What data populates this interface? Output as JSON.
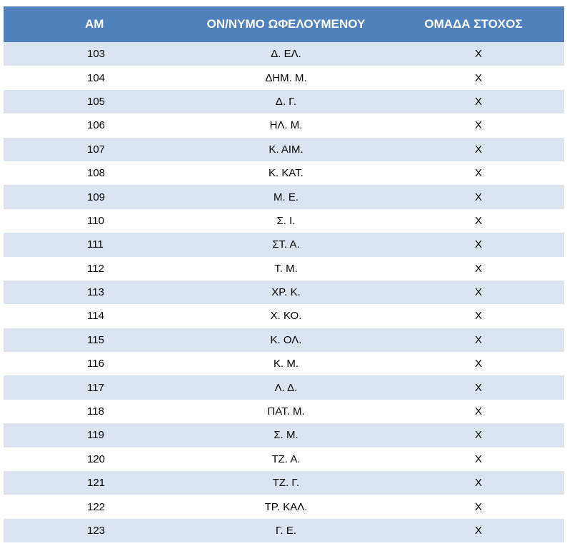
{
  "table": {
    "headers": [
      "ΑΜ",
      "ΟΝ/ΝΥΜΟ ΩΦΕΛΟΥΜΕΝΟΥ",
      "ΟΜΑΔΑ ΣΤΟΧΟΣ"
    ],
    "rows": [
      [
        "103",
        "Δ. ΕΛ.",
        "Χ"
      ],
      [
        "104",
        "ΔΗΜ. Μ.",
        "Χ"
      ],
      [
        "105",
        "Δ. Γ.",
        "Χ"
      ],
      [
        "106",
        "ΗΛ. Μ.",
        "Χ"
      ],
      [
        "107",
        "Κ. ΑΙΜ.",
        "Χ"
      ],
      [
        "108",
        "Κ. ΚΑΤ.",
        "Χ"
      ],
      [
        "109",
        "Μ. Ε.",
        "Χ"
      ],
      [
        "110",
        "Σ. Ι.",
        "Χ"
      ],
      [
        "111",
        "ΣΤ. Α.",
        "Χ"
      ],
      [
        "112",
        "Τ. Μ.",
        "Χ"
      ],
      [
        "113",
        "ΧΡ. Κ.",
        "Χ"
      ],
      [
        "114",
        "Χ. ΚΟ.",
        "Χ"
      ],
      [
        "115",
        "Κ. ΟΛ.",
        "Χ"
      ],
      [
        "116",
        "Κ. Μ.",
        "Χ"
      ],
      [
        "117",
        "Λ. Δ.",
        "Χ"
      ],
      [
        "118",
        "ΠΑΤ. Μ.",
        "Χ"
      ],
      [
        "119",
        "Σ. Μ.",
        "Χ"
      ],
      [
        "120",
        "ΤΖ. Α.",
        "Χ"
      ],
      [
        "121",
        "ΤΖ. Γ.",
        "Χ"
      ],
      [
        "122",
        "ΤΡ. ΚΑΛ.",
        "Χ"
      ],
      [
        "123",
        "Γ. Ε.",
        "Χ"
      ]
    ]
  },
  "colors": {
    "header_bg": "#4f81bd",
    "band_bg": "#dbe5f1",
    "plain_bg": "#ffffff"
  }
}
